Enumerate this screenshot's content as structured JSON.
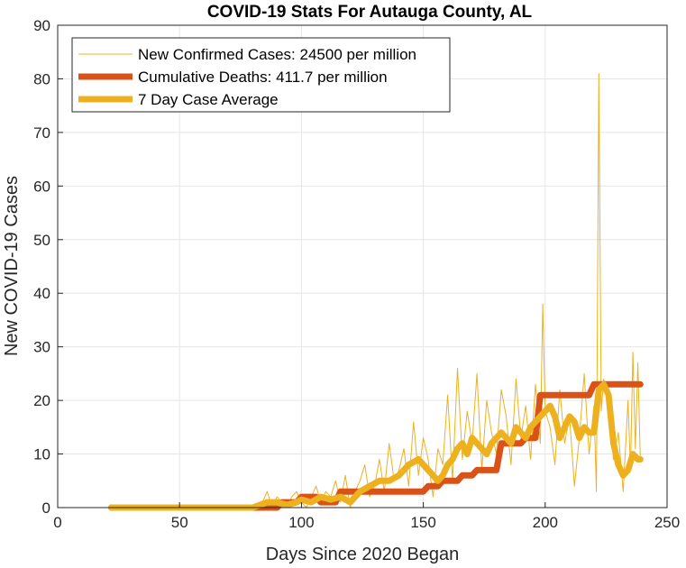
{
  "chart_data": {
    "type": "line",
    "title": "COVID-19 Stats For Autauga County, AL",
    "xlabel": "Days Since 2020 Began",
    "ylabel": "New COVID-19 Cases",
    "xlim": [
      0,
      250
    ],
    "ylim": [
      0,
      90
    ],
    "xticks": [
      "0",
      "50",
      "100",
      "150",
      "200",
      "250"
    ],
    "yticks": [
      "0",
      "10",
      "20",
      "30",
      "40",
      "50",
      "60",
      "70",
      "80",
      "90"
    ],
    "grid": true,
    "legend_position": "top-left",
    "series": [
      {
        "name": "New Confirmed Cases: 24500 per million",
        "color": "#EDB120",
        "x": [
          22,
          40,
          60,
          80,
          84,
          86,
          88,
          90,
          92,
          94,
          96,
          98,
          100,
          102,
          104,
          106,
          108,
          110,
          112,
          114,
          116,
          118,
          120,
          122,
          124,
          126,
          128,
          130,
          132,
          134,
          136,
          138,
          140,
          142,
          144,
          146,
          148,
          150,
          152,
          154,
          156,
          158,
          160,
          162,
          164,
          166,
          168,
          170,
          172,
          174,
          176,
          178,
          180,
          182,
          184,
          186,
          188,
          190,
          192,
          194,
          196,
          198,
          199,
          200,
          202,
          204,
          206,
          208,
          210,
          212,
          214,
          216,
          218,
          220,
          221,
          222,
          223,
          224,
          226,
          228,
          230,
          232,
          234,
          235,
          236,
          237,
          238,
          239
        ],
        "y": [
          0,
          0,
          0,
          0,
          1,
          3,
          0,
          2,
          1,
          0,
          2,
          3,
          1,
          0,
          2,
          4,
          1,
          3,
          2,
          5,
          1,
          6,
          0,
          3,
          5,
          8,
          2,
          4,
          9,
          3,
          12,
          5,
          7,
          11,
          4,
          16,
          6,
          13,
          9,
          2,
          11,
          8,
          21,
          5,
          26,
          9,
          18,
          12,
          25,
          7,
          20,
          14,
          10,
          22,
          17,
          8,
          24,
          13,
          19,
          9,
          23,
          12,
          38,
          18,
          15,
          8,
          22,
          12,
          17,
          4,
          13,
          25,
          10,
          19,
          3,
          81,
          18,
          24,
          20,
          9,
          14,
          3,
          20,
          7,
          29,
          11,
          27,
          9
        ]
      },
      {
        "name": "Cumulative Deaths: 411.7 per million",
        "color": "#D95319",
        "x": [
          22,
          90,
          92,
          98,
          100,
          106,
          108,
          114,
          116,
          128,
          130,
          150,
          152,
          156,
          158,
          164,
          166,
          170,
          172,
          180,
          182,
          190,
          192,
          196,
          198,
          218,
          220,
          239
        ],
        "y": [
          0,
          0,
          1,
          1,
          2,
          2,
          1,
          1,
          3,
          3,
          3,
          3,
          4,
          4,
          5,
          5,
          6,
          6,
          7,
          7,
          12,
          12,
          13,
          13,
          21,
          21,
          23,
          23
        ]
      },
      {
        "name": "7 Day Case Average",
        "color": "#EDB120",
        "x": [
          22,
          40,
          60,
          80,
          86,
          90,
          94,
          98,
          100,
          104,
          108,
          112,
          116,
          120,
          124,
          128,
          132,
          136,
          140,
          144,
          148,
          150,
          152,
          154,
          156,
          158,
          160,
          162,
          164,
          166,
          168,
          170,
          172,
          174,
          176,
          178,
          180,
          182,
          184,
          186,
          188,
          190,
          192,
          194,
          196,
          198,
          200,
          202,
          204,
          206,
          208,
          210,
          212,
          214,
          216,
          218,
          220,
          222,
          224,
          226,
          228,
          230,
          232,
          234,
          236,
          238,
          239
        ],
        "y": [
          0,
          0,
          0,
          0,
          1,
          1,
          0.5,
          1,
          1.5,
          1,
          2,
          1.5,
          2,
          1,
          3,
          4,
          5,
          5,
          6,
          8,
          9,
          8,
          7,
          6,
          5,
          6,
          8,
          9,
          11,
          12,
          10,
          13,
          12,
          11,
          10,
          12,
          13,
          14,
          13,
          12,
          15,
          14,
          13,
          15,
          16,
          17,
          18,
          19,
          17,
          13,
          15,
          17,
          16,
          13,
          15,
          14,
          14,
          22,
          23,
          21,
          12,
          8,
          6,
          7,
          10,
          9,
          9
        ]
      }
    ]
  }
}
